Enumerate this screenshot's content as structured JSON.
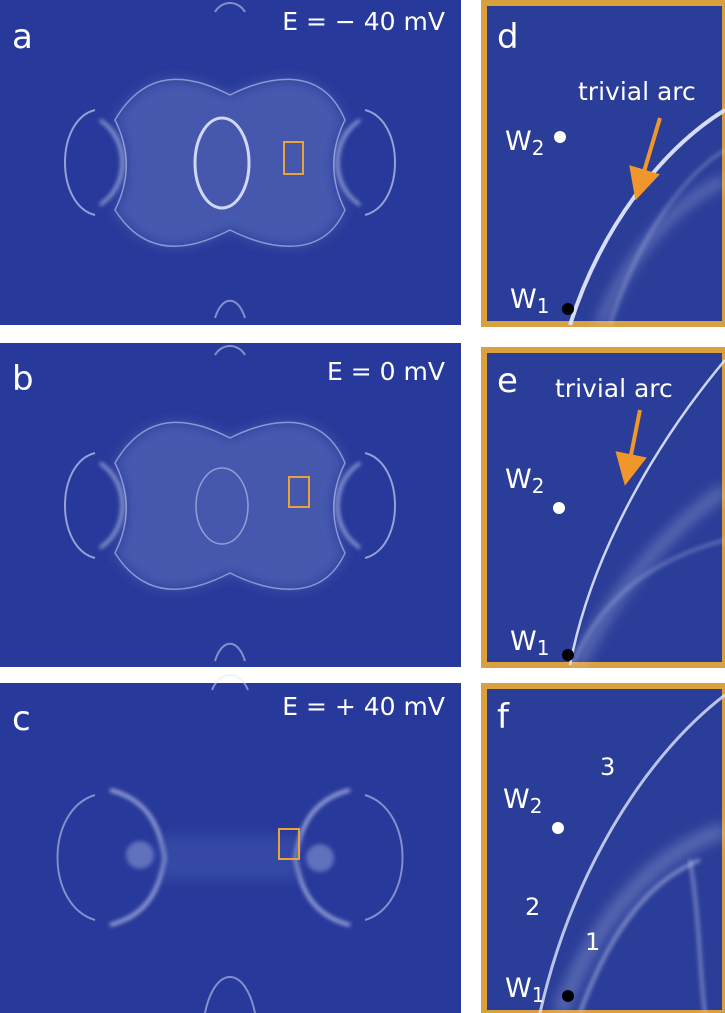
{
  "panels": [
    {
      "label": "a",
      "energy": "E = − 40 mV"
    },
    {
      "label": "b",
      "energy": "E = 0 mV"
    },
    {
      "label": "c",
      "energy": "E = + 40 mV"
    },
    {
      "label": "d",
      "annotation": "trivial arc",
      "points": [
        {
          "name": "W",
          "sub": "2"
        },
        {
          "name": "W",
          "sub": "1"
        }
      ]
    },
    {
      "label": "e",
      "annotation": "trivial arc",
      "points": [
        {
          "name": "W",
          "sub": "2"
        },
        {
          "name": "W",
          "sub": "1"
        }
      ]
    },
    {
      "label": "f",
      "points": [
        {
          "name": "W",
          "sub": "2"
        },
        {
          "name": "W",
          "sub": "1"
        }
      ],
      "arc_numbers": [
        "3",
        "2",
        "1"
      ]
    }
  ]
}
